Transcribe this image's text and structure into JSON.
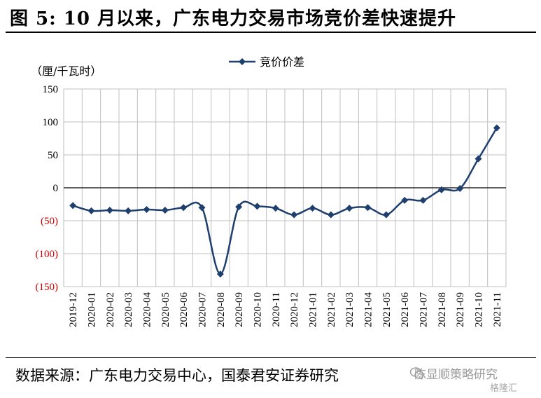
{
  "figure": {
    "title": "图 5:  10 月以来，广东电力交易市场竞价差快速提升",
    "source": "数据来源：广东电力交易中心，国泰君安证券研究",
    "watermark": "陈显顺策略研究",
    "watermark2": "格隆汇"
  },
  "chart_data": {
    "type": "line",
    "title": "",
    "ylabel": "（厘/千瓦时）",
    "xlabel": "",
    "ylim": [
      -150,
      150
    ],
    "yticks": [
      150,
      100,
      50,
      0,
      -50,
      -100,
      -150
    ],
    "ytick_labels": [
      "150",
      "100",
      "50",
      "0",
      "(50)",
      "(100)",
      "(150)"
    ],
    "grid": true,
    "legend_placement": "top-center",
    "colors": {
      "line": "#1f3f6e",
      "negative_tick": "#cc0000",
      "grid": "#c0c0c0"
    },
    "categories": [
      "2019-12",
      "2020-01",
      "2020-02",
      "2020-03",
      "2020-04",
      "2020-05",
      "2020-06",
      "2020-07",
      "2020-08",
      "2020-09",
      "2020-10",
      "2020-11",
      "2020-12",
      "2021-01",
      "2021-02",
      "2021-03",
      "2021-04",
      "2021-05",
      "2021-06",
      "2021-07",
      "2021-08",
      "2021-09",
      "2021-10",
      "2021-11"
    ],
    "series": [
      {
        "name": "竞价价差",
        "values": [
          -27,
          -35,
          -34,
          -35,
          -33,
          -34,
          -30,
          -30,
          -131,
          -29,
          -28,
          -31,
          -41,
          -31,
          -41,
          -31,
          -30,
          -41,
          -19,
          -19,
          -3,
          -1,
          44,
          91
        ]
      }
    ]
  }
}
